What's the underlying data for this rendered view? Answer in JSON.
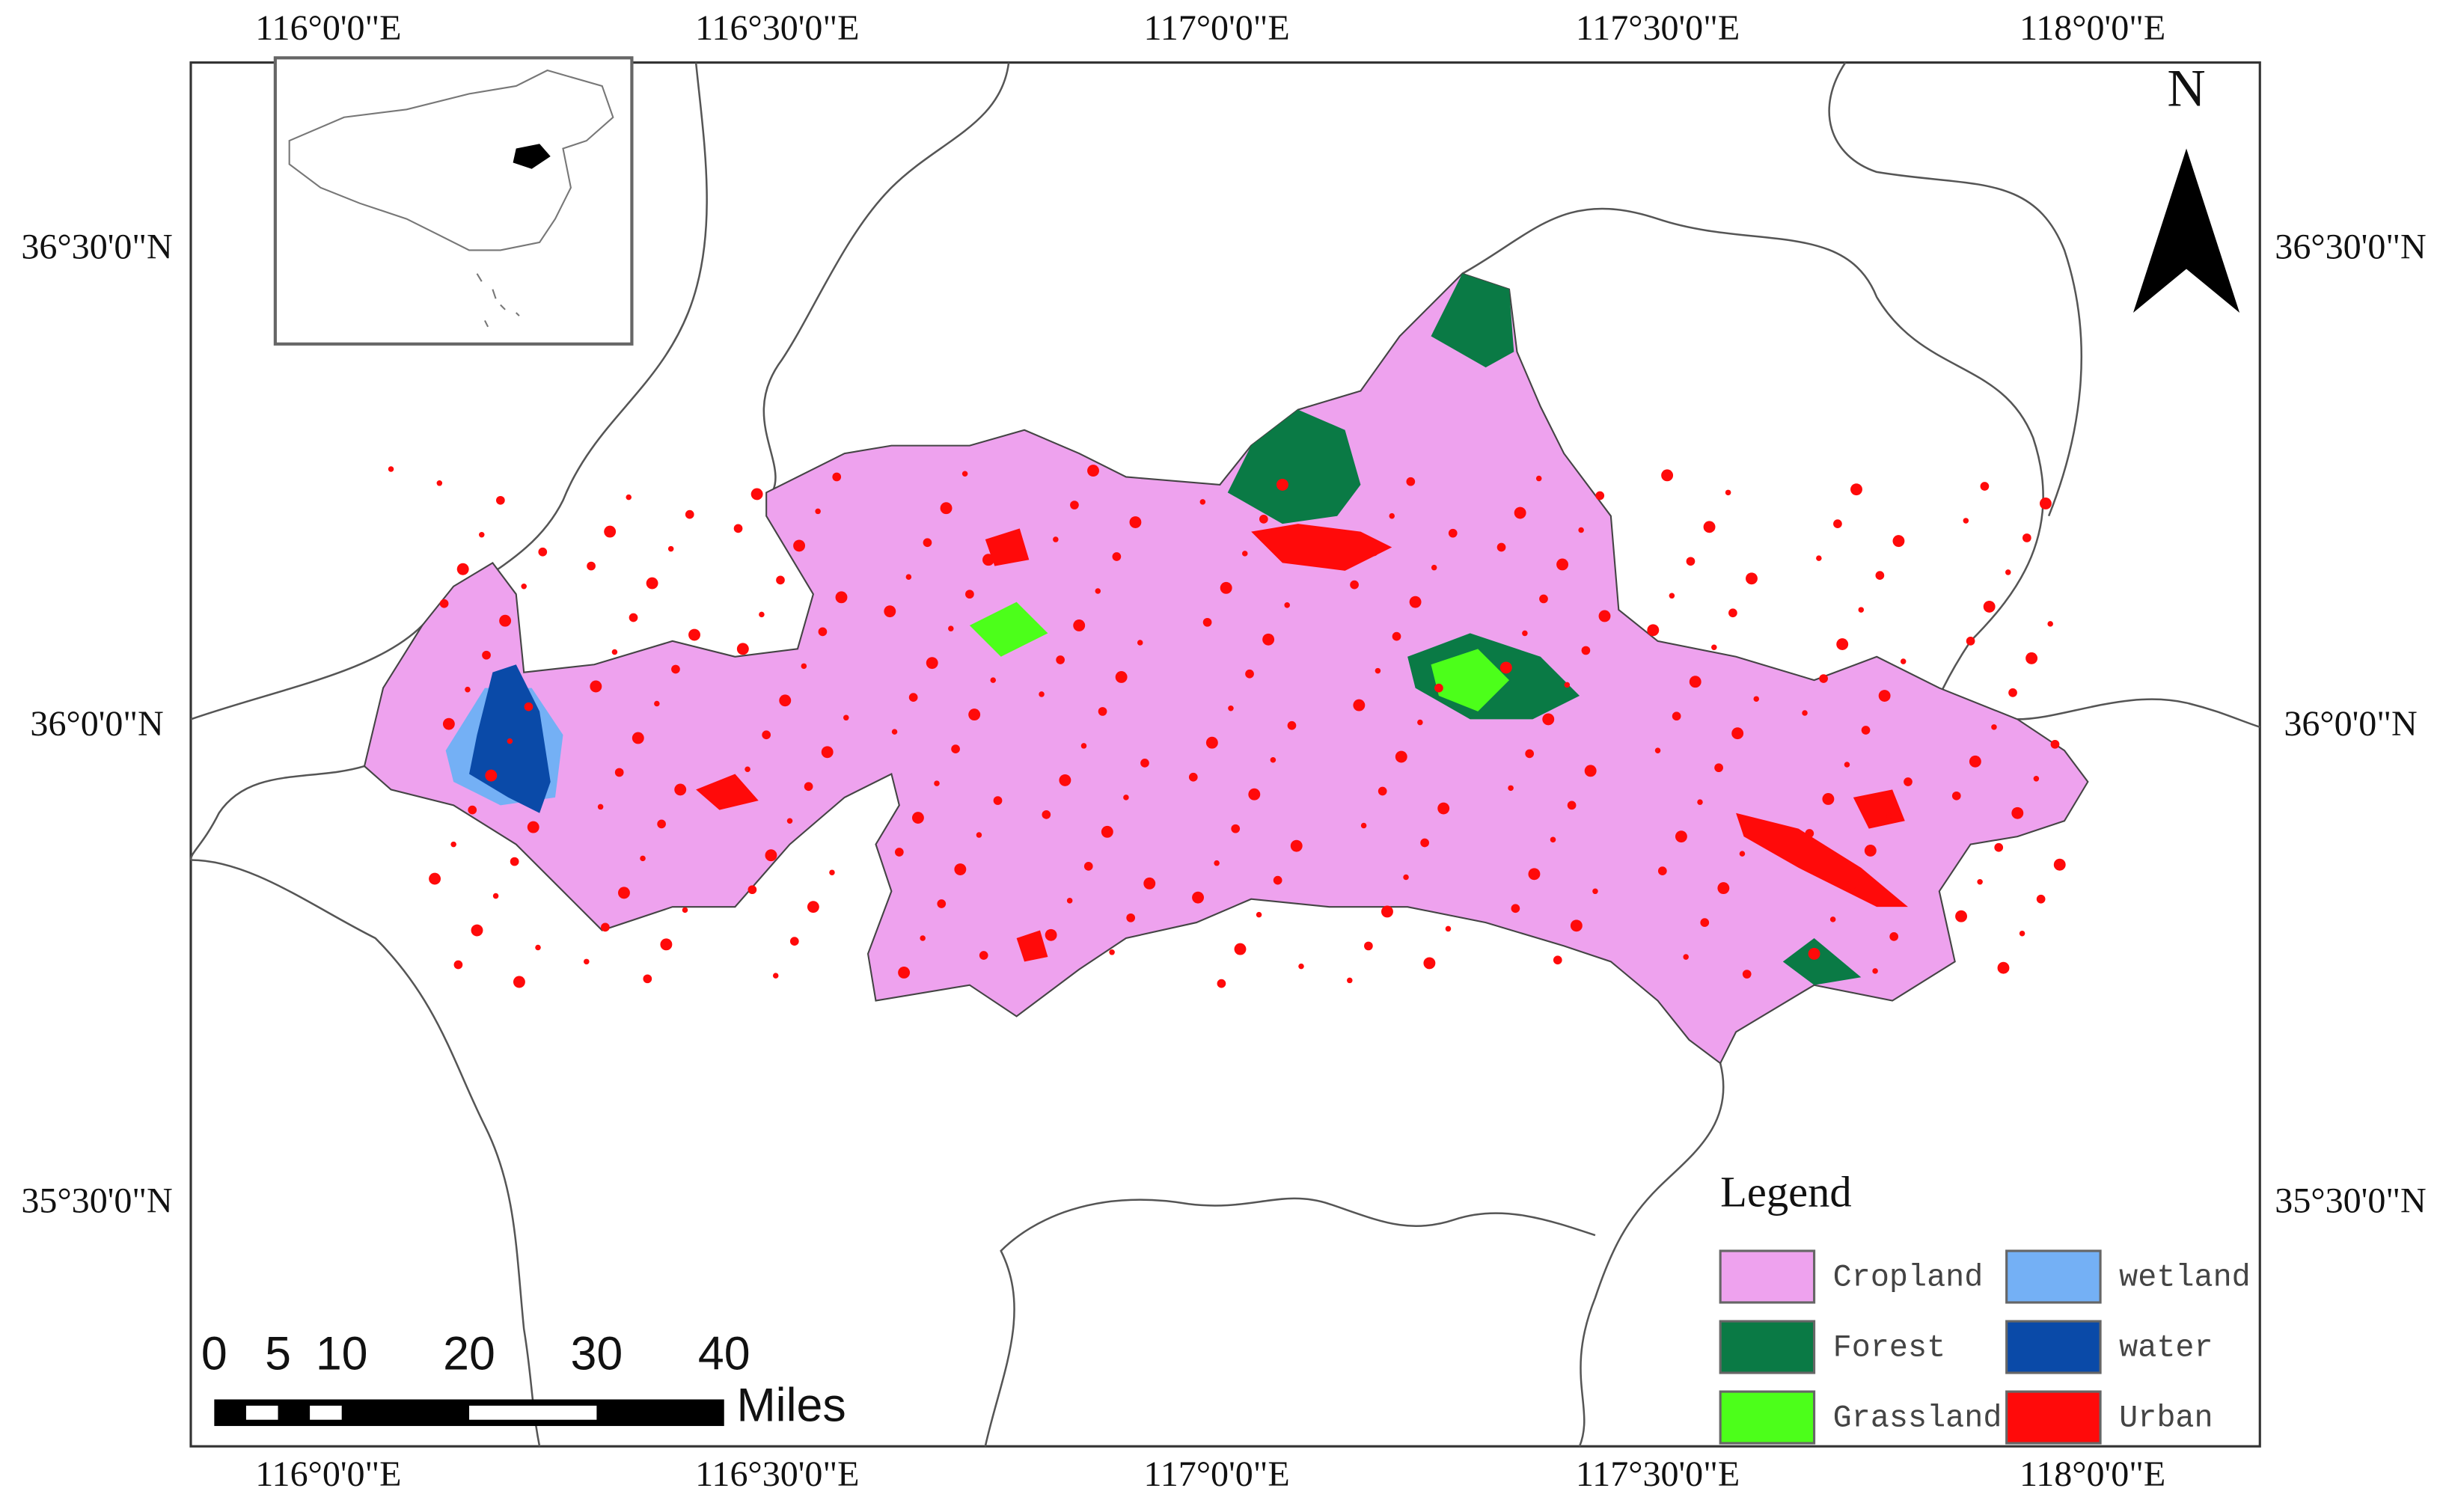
{
  "map": {
    "lon_labels": [
      "116°0'0\"E",
      "116°30'0\"E",
      "117°0'0\"E",
      "117°30'0\"E",
      "118°0'0\"E"
    ],
    "lat_labels": [
      "36°30'0\"N",
      "36°0'0\"N",
      "35°30'0\"N"
    ],
    "north": "N"
  },
  "scale_bar": {
    "ticks": [
      0,
      5,
      10,
      20,
      30,
      40
    ],
    "unit": "Miles"
  },
  "legend": {
    "title": "Legend",
    "items": [
      {
        "label": "Cropland",
        "color": "#eea2ee"
      },
      {
        "label": "wetland",
        "color": "#74b0f5"
      },
      {
        "label": "Forest",
        "color": "#0a7a45"
      },
      {
        "label": "water",
        "color": "#0a4aa8"
      },
      {
        "label": "Grassland",
        "color": "#4cff1a"
      },
      {
        "label": "Urban",
        "color": "#ff0a0a"
      }
    ]
  }
}
